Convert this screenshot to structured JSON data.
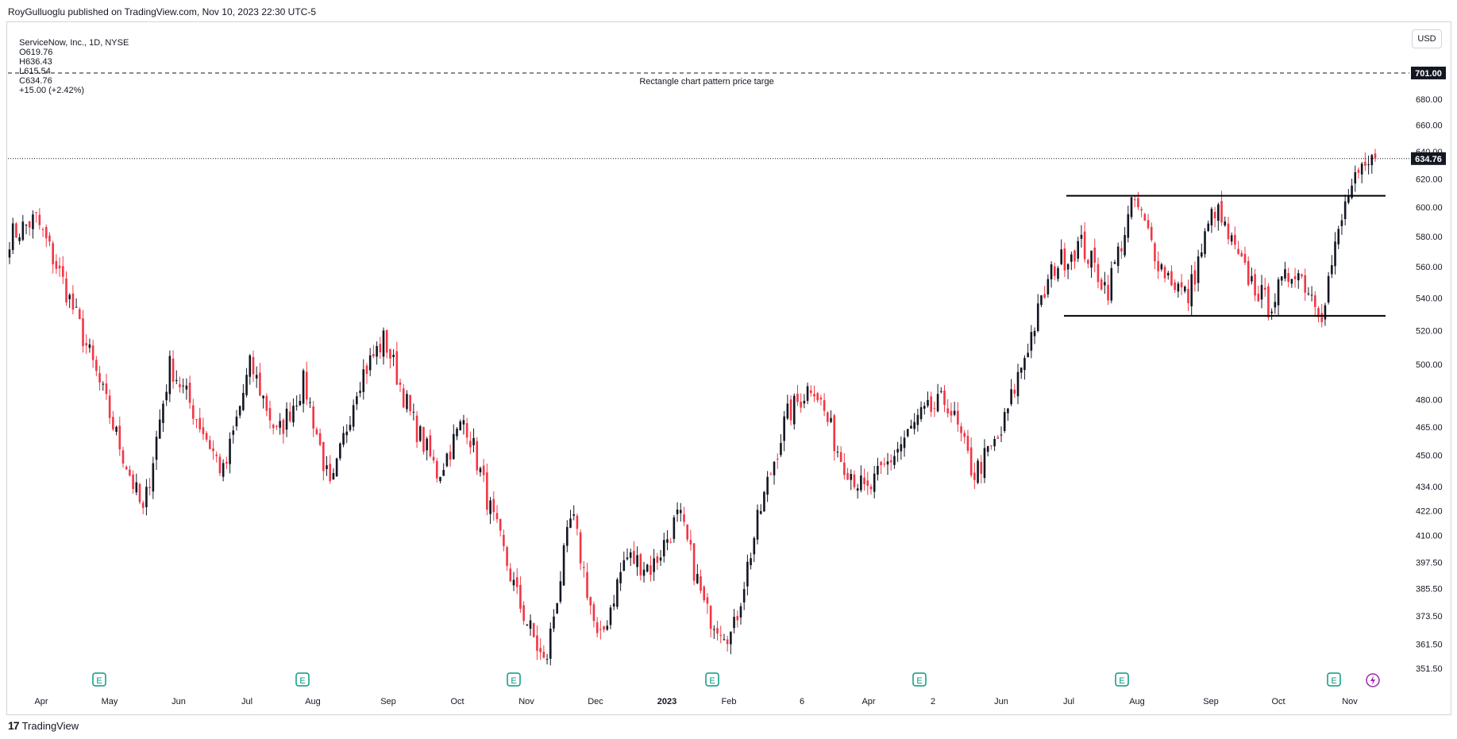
{
  "header": {
    "publisher": "RoyGulluoglu published on TradingView.com, Nov 10, 2023 22:30 UTC-5"
  },
  "legend": {
    "symbol": "ServiceNow, Inc., 1D, NYSE",
    "open": "O619.76",
    "high": "H636.43",
    "low": "L615.54",
    "close": "C634.76",
    "change": "+15.00 (+2.42%)"
  },
  "currency": "USD",
  "footer": {
    "logo_mark": "17",
    "logo_text": "TradingView"
  },
  "colors": {
    "up": "#131722",
    "down": "#f23645",
    "axis_text": "#131722",
    "border": "#d1d4dc",
    "label_bg": "#131722",
    "earnings": "#089981",
    "dividends": "#9c27b0"
  },
  "chart_data": {
    "type": "candlestick",
    "price_scale": "log",
    "y_ticks": [
      "351.50",
      "361.50",
      "373.50",
      "385.50",
      "397.50",
      "410.00",
      "422.00",
      "434.00",
      "450.00",
      "465.00",
      "480.00",
      "500.00",
      "520.00",
      "540.00",
      "560.00",
      "580.00",
      "600.00",
      "620.00",
      "640.00",
      "660.00",
      "680.00"
    ],
    "x_ticks": [
      "Apr",
      "May",
      "Jun",
      "Jul",
      "Aug",
      "Sep",
      "Oct",
      "Nov",
      "Dec",
      "2023",
      "Feb",
      "6",
      "Apr",
      "2",
      "Jun",
      "Jul",
      "Aug",
      "Sep",
      "Oct",
      "Nov"
    ],
    "last_price": "634.76",
    "horizontal_lines": [
      {
        "price": 701.0,
        "label": "701.00",
        "style": "dashed",
        "text": "Rectangle chart pattern price targe"
      },
      {
        "price": 634.76,
        "style": "dotted"
      }
    ],
    "pattern_lines": [
      {
        "name": "rectangle-top",
        "price": 608,
        "from": "Jul",
        "to": "Nov"
      },
      {
        "name": "rectangle-bottom",
        "price": 529,
        "from": "Jul",
        "to": "Nov"
      }
    ],
    "earnings_markers": [
      "Apr-May",
      "Jul-Aug",
      "Oct-Nov",
      "Jan",
      "Apr-May",
      "Jul",
      "Oct"
    ],
    "earnings_label": "E",
    "price_path": [
      [
        "start",
        580
      ],
      [
        "Apr",
        592
      ],
      [
        "Apr-mid",
        550
      ],
      [
        "May",
        505
      ],
      [
        "May-mid",
        460
      ],
      [
        "May-end",
        420
      ],
      [
        "Jun",
        500
      ],
      [
        "Jun-mid",
        470
      ],
      [
        "Jun-end",
        440
      ],
      [
        "Jul",
        500
      ],
      [
        "Jul-mid",
        460
      ],
      [
        "Jul-end",
        490
      ],
      [
        "Aug",
        430
      ],
      [
        "Aug-mid",
        490
      ],
      [
        "Aug-peak",
        515
      ],
      [
        "Sep",
        470
      ],
      [
        "Sep-mid",
        440
      ],
      [
        "Sep-end",
        470
      ],
      [
        "Oct",
        420
      ],
      [
        "Oct-mid",
        380
      ],
      [
        "Oct-end",
        352
      ],
      [
        "Nov",
        420
      ],
      [
        "Nov-mid",
        360
      ],
      [
        "Nov-end",
        400
      ],
      [
        "Dec",
        395
      ],
      [
        "Dec-mid",
        420
      ],
      [
        "Dec-end",
        375
      ],
      [
        "2023",
        365
      ],
      [
        "Jan-mid",
        420
      ],
      [
        "Jan-end",
        470
      ],
      [
        "Feb",
        490
      ],
      [
        "Feb-mid",
        450
      ],
      [
        "Mar",
        430
      ],
      [
        "Mar-mid",
        450
      ],
      [
        "Apr",
        470
      ],
      [
        "Apr-mid",
        480
      ],
      [
        "May",
        440
      ],
      [
        "May-mid",
        460
      ],
      [
        "Jun",
        510
      ],
      [
        "Jun-mid",
        560
      ],
      [
        "Jun-end",
        575
      ],
      [
        "Jul",
        545
      ],
      [
        "Jul-mid",
        605
      ],
      [
        "Aug",
        560
      ],
      [
        "Aug-mid",
        540
      ],
      [
        "Sep",
        600
      ],
      [
        "Sep-mid",
        560
      ],
      [
        "Oct",
        535
      ],
      [
        "Oct-mid",
        560
      ],
      [
        "Oct-end",
        532
      ],
      [
        "Nov",
        610
      ],
      [
        "Nov-end",
        634.76
      ]
    ]
  }
}
